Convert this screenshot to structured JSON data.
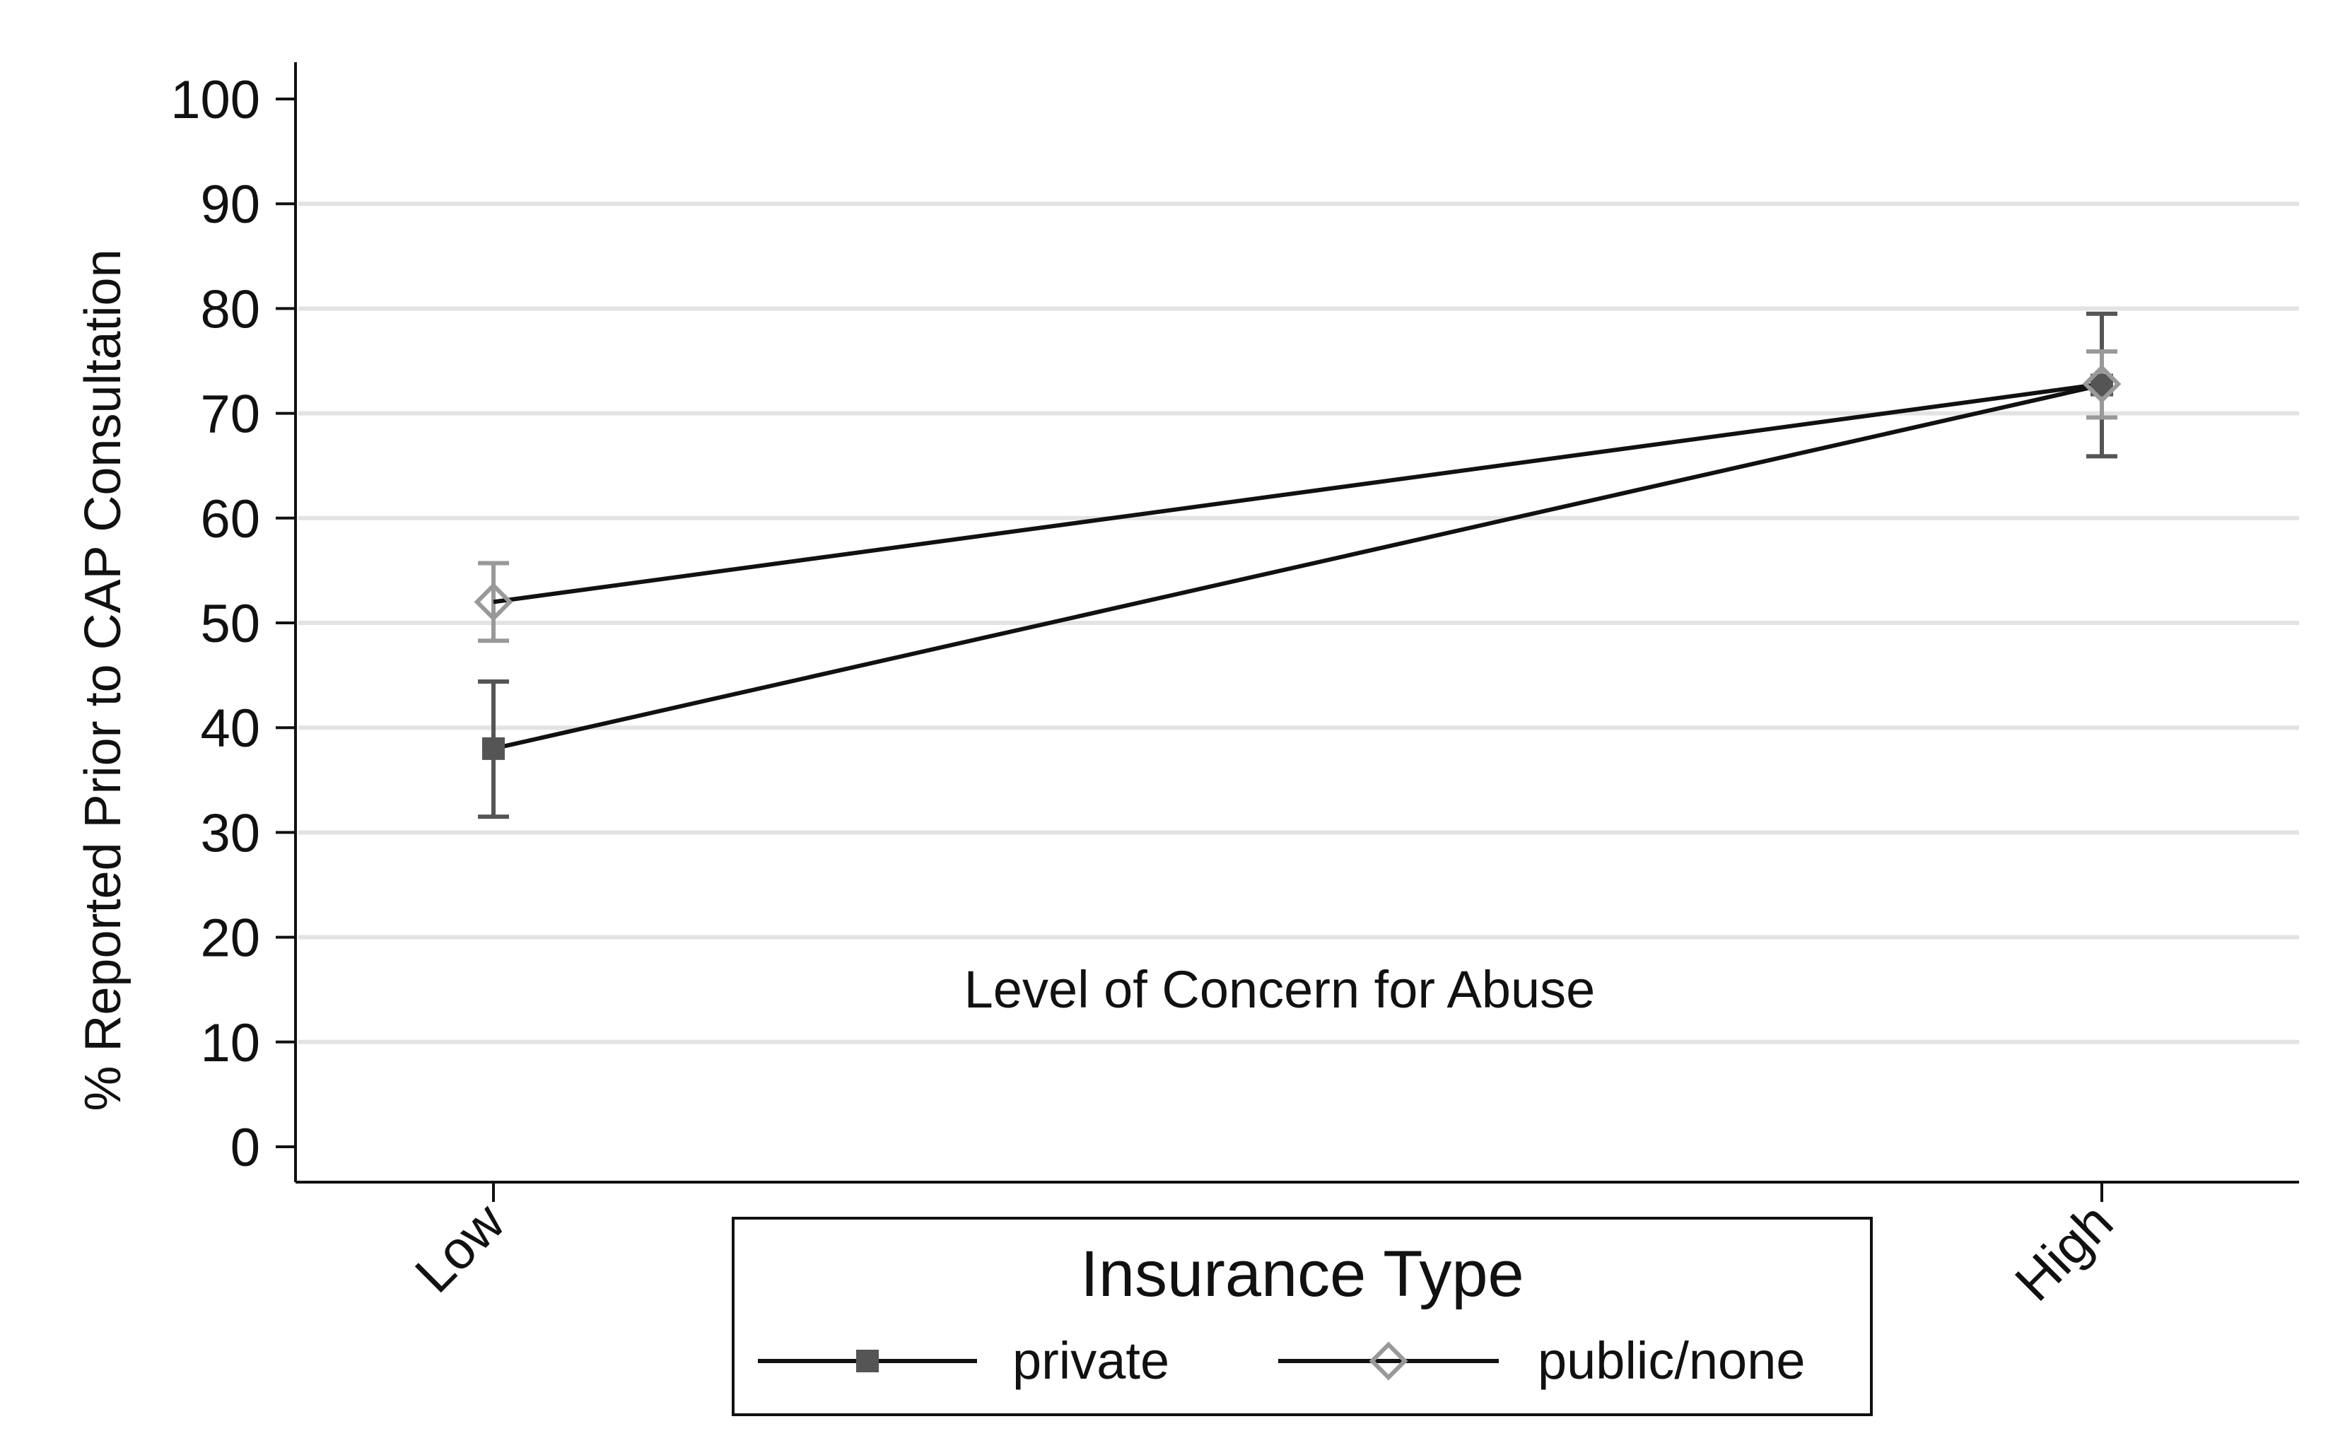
{
  "chart_data": {
    "type": "line",
    "xlabel": "Level of Concern for Abuse",
    "ylabel": "% Reported Prior to CAP Consultation",
    "categories": [
      "Low",
      "High"
    ],
    "ylim": [
      0,
      100
    ],
    "yticks": [
      0,
      10,
      20,
      30,
      40,
      50,
      60,
      70,
      80,
      90,
      100
    ],
    "grid": true,
    "legend": {
      "title": "Insurance Type",
      "placement": "bottom-center"
    },
    "series": [
      {
        "name": "private",
        "marker": "filled-square",
        "color": "#555555",
        "values": [
          38,
          72.7
        ],
        "ci_low": [
          31.5,
          65.9
        ],
        "ci_high": [
          44.4,
          79.5
        ]
      },
      {
        "name": "public/none",
        "marker": "hollow-diamond",
        "color": "#999999",
        "values": [
          52,
          72.8
        ],
        "ci_low": [
          48.3,
          69.6
        ],
        "ci_high": [
          55.7,
          75.9
        ]
      }
    ]
  }
}
